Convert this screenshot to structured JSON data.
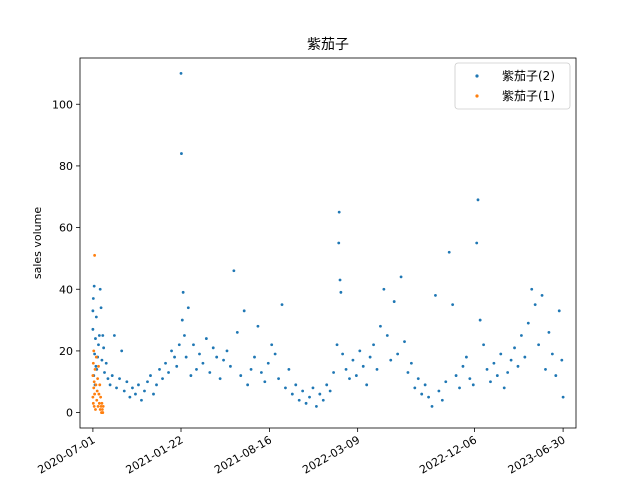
{
  "chart_data": {
    "type": "scatter",
    "title": "紫茄子",
    "xlabel": "",
    "ylabel": "sales volume",
    "x_type": "date",
    "xlim": [
      "2020-06-01",
      "2023-07-30"
    ],
    "ylim": [
      -5,
      115
    ],
    "x_ticks": [
      "2020-07-01",
      "2021-01-22",
      "2021-08-16",
      "2022-03-09",
      "2022-12-06",
      "2023-06-30"
    ],
    "y_ticks": [
      0,
      20,
      40,
      60,
      80,
      100
    ],
    "grid": false,
    "legend_position": "top-right",
    "series": [
      {
        "name": "紫茄子(2)",
        "color": "#1f77b4",
        "points": [
          [
            "2020-07-01",
            27
          ],
          [
            "2020-07-01",
            33
          ],
          [
            "2020-07-02",
            37
          ],
          [
            "2020-07-03",
            12
          ],
          [
            "2020-07-04",
            41
          ],
          [
            "2020-07-05",
            19
          ],
          [
            "2020-07-06",
            9
          ],
          [
            "2020-07-07",
            24
          ],
          [
            "2020-07-08",
            15
          ],
          [
            "2020-07-09",
            31
          ],
          [
            "2020-07-10",
            14
          ],
          [
            "2020-07-12",
            18
          ],
          [
            "2020-07-14",
            22
          ],
          [
            "2020-07-16",
            25
          ],
          [
            "2020-07-18",
            40
          ],
          [
            "2020-07-20",
            34
          ],
          [
            "2020-07-22",
            17
          ],
          [
            "2020-07-24",
            25
          ],
          [
            "2020-07-26",
            21
          ],
          [
            "2020-07-28",
            13
          ],
          [
            "2020-08-01",
            16
          ],
          [
            "2020-08-05",
            11
          ],
          [
            "2020-08-10",
            9
          ],
          [
            "2020-08-15",
            12
          ],
          [
            "2020-08-20",
            25
          ],
          [
            "2020-08-25",
            8
          ],
          [
            "2020-09-01",
            11
          ],
          [
            "2020-09-06",
            20
          ],
          [
            "2020-09-12",
            7
          ],
          [
            "2020-09-18",
            10
          ],
          [
            "2020-09-25",
            5
          ],
          [
            "2020-10-01",
            8
          ],
          [
            "2020-10-08",
            6
          ],
          [
            "2020-10-15",
            9
          ],
          [
            "2020-10-22",
            4
          ],
          [
            "2020-10-29",
            7
          ],
          [
            "2020-11-05",
            10
          ],
          [
            "2020-11-12",
            12
          ],
          [
            "2020-11-19",
            6
          ],
          [
            "2020-11-26",
            9
          ],
          [
            "2020-12-03",
            14
          ],
          [
            "2020-12-10",
            11
          ],
          [
            "2020-12-17",
            16
          ],
          [
            "2020-12-24",
            13
          ],
          [
            "2020-12-31",
            20
          ],
          [
            "2021-01-07",
            18
          ],
          [
            "2021-01-12",
            15
          ],
          [
            "2021-01-18",
            22
          ],
          [
            "2021-01-22",
            110
          ],
          [
            "2021-01-23",
            84
          ],
          [
            "2021-01-25",
            30
          ],
          [
            "2021-01-27",
            39
          ],
          [
            "2021-01-30",
            25
          ],
          [
            "2021-02-03",
            18
          ],
          [
            "2021-02-08",
            34
          ],
          [
            "2021-02-14",
            12
          ],
          [
            "2021-02-20",
            22
          ],
          [
            "2021-02-27",
            14
          ],
          [
            "2021-03-06",
            19
          ],
          [
            "2021-03-14",
            16
          ],
          [
            "2021-03-22",
            24
          ],
          [
            "2021-03-30",
            13
          ],
          [
            "2021-04-07",
            21
          ],
          [
            "2021-04-15",
            18
          ],
          [
            "2021-04-23",
            11
          ],
          [
            "2021-05-01",
            17
          ],
          [
            "2021-05-09",
            20
          ],
          [
            "2021-05-17",
            15
          ],
          [
            "2021-05-25",
            46
          ],
          [
            "2021-06-02",
            26
          ],
          [
            "2021-06-10",
            12
          ],
          [
            "2021-06-18",
            33
          ],
          [
            "2021-06-26",
            9
          ],
          [
            "2021-07-04",
            14
          ],
          [
            "2021-07-12",
            18
          ],
          [
            "2021-07-20",
            28
          ],
          [
            "2021-07-28",
            13
          ],
          [
            "2021-08-05",
            10
          ],
          [
            "2021-08-13",
            16
          ],
          [
            "2021-08-21",
            22
          ],
          [
            "2021-08-29",
            19
          ],
          [
            "2021-09-06",
            11
          ],
          [
            "2021-09-14",
            35
          ],
          [
            "2021-09-22",
            8
          ],
          [
            "2021-09-30",
            14
          ],
          [
            "2021-10-08",
            6
          ],
          [
            "2021-10-16",
            9
          ],
          [
            "2021-10-24",
            4
          ],
          [
            "2021-11-01",
            7
          ],
          [
            "2021-11-09",
            3
          ],
          [
            "2021-11-17",
            5
          ],
          [
            "2021-11-25",
            8
          ],
          [
            "2021-12-03",
            2
          ],
          [
            "2021-12-11",
            6
          ],
          [
            "2021-12-19",
            4
          ],
          [
            "2021-12-27",
            9
          ],
          [
            "2022-01-04",
            7
          ],
          [
            "2022-01-12",
            13
          ],
          [
            "2022-01-20",
            22
          ],
          [
            "2022-01-24",
            55
          ],
          [
            "2022-01-25",
            65
          ],
          [
            "2022-01-27",
            43
          ],
          [
            "2022-01-29",
            39
          ],
          [
            "2022-02-02",
            19
          ],
          [
            "2022-02-10",
            14
          ],
          [
            "2022-02-18",
            11
          ],
          [
            "2022-02-26",
            17
          ],
          [
            "2022-03-06",
            12
          ],
          [
            "2022-03-14",
            20
          ],
          [
            "2022-03-22",
            15
          ],
          [
            "2022-03-30",
            9
          ],
          [
            "2022-04-07",
            18
          ],
          [
            "2022-04-15",
            22
          ],
          [
            "2022-04-23",
            14
          ],
          [
            "2022-05-01",
            28
          ],
          [
            "2022-05-09",
            40
          ],
          [
            "2022-05-17",
            25
          ],
          [
            "2022-05-25",
            17
          ],
          [
            "2022-06-02",
            36
          ],
          [
            "2022-06-10",
            19
          ],
          [
            "2022-06-18",
            44
          ],
          [
            "2022-06-26",
            23
          ],
          [
            "2022-07-04",
            13
          ],
          [
            "2022-07-12",
            16
          ],
          [
            "2022-07-20",
            8
          ],
          [
            "2022-07-28",
            11
          ],
          [
            "2022-08-05",
            6
          ],
          [
            "2022-08-13",
            9
          ],
          [
            "2022-08-21",
            5
          ],
          [
            "2022-08-29",
            2
          ],
          [
            "2022-09-06",
            38
          ],
          [
            "2022-09-14",
            7
          ],
          [
            "2022-09-22",
            4
          ],
          [
            "2022-09-30",
            10
          ],
          [
            "2022-10-08",
            52
          ],
          [
            "2022-10-16",
            35
          ],
          [
            "2022-10-24",
            12
          ],
          [
            "2022-11-01",
            8
          ],
          [
            "2022-11-09",
            15
          ],
          [
            "2022-11-17",
            18
          ],
          [
            "2022-11-25",
            11
          ],
          [
            "2022-12-03",
            9
          ],
          [
            "2022-12-11",
            55
          ],
          [
            "2022-12-14",
            69
          ],
          [
            "2022-12-19",
            30
          ],
          [
            "2022-12-27",
            22
          ],
          [
            "2023-01-04",
            14
          ],
          [
            "2023-01-12",
            10
          ],
          [
            "2023-01-20",
            16
          ],
          [
            "2023-01-28",
            12
          ],
          [
            "2023-02-05",
            19
          ],
          [
            "2023-02-13",
            8
          ],
          [
            "2023-02-21",
            13
          ],
          [
            "2023-03-01",
            17
          ],
          [
            "2023-03-09",
            21
          ],
          [
            "2023-03-17",
            15
          ],
          [
            "2023-03-25",
            25
          ],
          [
            "2023-04-02",
            18
          ],
          [
            "2023-04-10",
            29
          ],
          [
            "2023-04-18",
            40
          ],
          [
            "2023-04-26",
            35
          ],
          [
            "2023-05-04",
            22
          ],
          [
            "2023-05-12",
            38
          ],
          [
            "2023-05-20",
            14
          ],
          [
            "2023-05-28",
            26
          ],
          [
            "2023-06-05",
            19
          ],
          [
            "2023-06-13",
            12
          ],
          [
            "2023-06-21",
            33
          ],
          [
            "2023-06-27",
            17
          ],
          [
            "2023-06-30",
            5
          ]
        ]
      },
      {
        "name": "紫茄子(1)",
        "color": "#ff7f0e",
        "points": [
          [
            "2020-07-01",
            5
          ],
          [
            "2020-07-01",
            12
          ],
          [
            "2020-07-02",
            3
          ],
          [
            "2020-07-02",
            16
          ],
          [
            "2020-07-03",
            8
          ],
          [
            "2020-07-03",
            20
          ],
          [
            "2020-07-04",
            2
          ],
          [
            "2020-07-04",
            10
          ],
          [
            "2020-07-05",
            51
          ],
          [
            "2020-07-05",
            6
          ],
          [
            "2020-07-06",
            14
          ],
          [
            "2020-07-07",
            1
          ],
          [
            "2020-07-08",
            9
          ],
          [
            "2020-07-09",
            18
          ],
          [
            "2020-07-10",
            4
          ],
          [
            "2020-07-11",
            7
          ],
          [
            "2020-07-12",
            11
          ],
          [
            "2020-07-13",
            2
          ],
          [
            "2020-07-14",
            15
          ],
          [
            "2020-07-15",
            6
          ],
          [
            "2020-07-16",
            3
          ],
          [
            "2020-07-17",
            9
          ],
          [
            "2020-07-18",
            1
          ],
          [
            "2020-07-19",
            5
          ],
          [
            "2020-07-20",
            2
          ],
          [
            "2020-07-21",
            0
          ],
          [
            "2020-07-22",
            3
          ],
          [
            "2020-07-23",
            1
          ],
          [
            "2020-07-24",
            0
          ],
          [
            "2020-07-25",
            2
          ]
        ]
      }
    ]
  }
}
